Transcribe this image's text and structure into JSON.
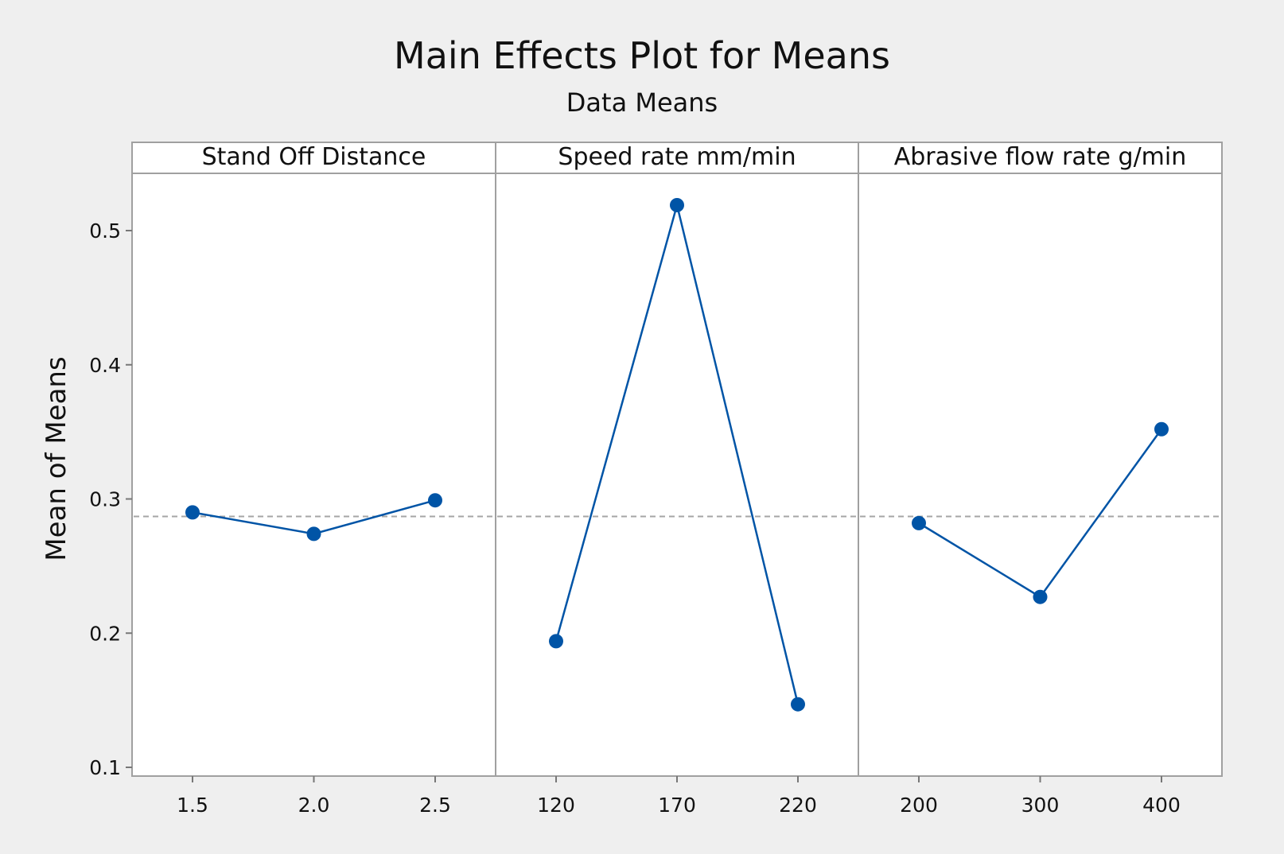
{
  "chart_data": {
    "type": "line",
    "title": "Main Effects Plot for Means",
    "subtitle": "Data Means",
    "ylabel": "Mean of Means",
    "ylim": [
      0.1,
      0.55
    ],
    "yticks": [
      "0.1",
      "0.2",
      "0.3",
      "0.4",
      "0.5"
    ],
    "ytick_values": [
      0.1,
      0.2,
      0.3,
      0.4,
      0.5
    ],
    "reference_line": {
      "value": 0.287,
      "style": "dashed",
      "color": "#a6a6a6"
    },
    "series_color": "#0054a6",
    "grid": false,
    "panels": [
      {
        "name": "Stand Off Distance",
        "x": [
          "1.5",
          "2.0",
          "2.5"
        ],
        "values": [
          0.29,
          0.274,
          0.299
        ]
      },
      {
        "name": "Speed rate mm/min",
        "x": [
          "120",
          "170",
          "220"
        ],
        "values": [
          0.194,
          0.519,
          0.147
        ]
      },
      {
        "name": "Abrasive flow rate g/min",
        "x": [
          "200",
          "300",
          "400"
        ],
        "values": [
          0.282,
          0.227,
          0.352
        ]
      }
    ]
  }
}
